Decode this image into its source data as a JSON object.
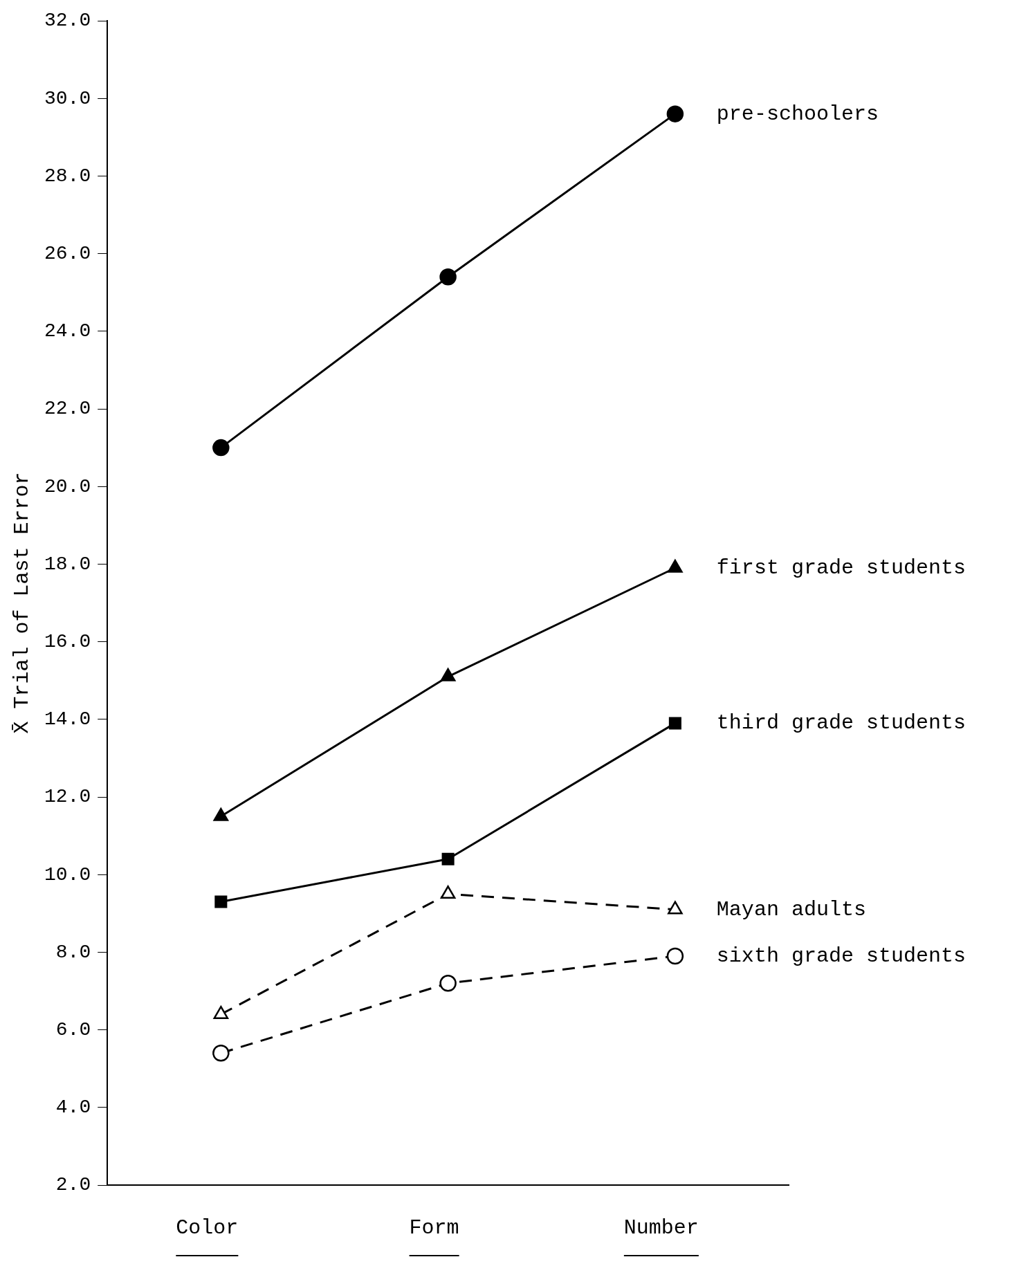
{
  "chart_data": {
    "type": "line",
    "ylabel": "X̄ Trial of Last Error",
    "categories": [
      "Color",
      "Form",
      "Number"
    ],
    "ylim": [
      2,
      32
    ],
    "yticks": [
      {
        "value": 2,
        "label": "2.0"
      },
      {
        "value": 4,
        "label": "4.0"
      },
      {
        "value": 6,
        "label": "6.0"
      },
      {
        "value": 8,
        "label": "8.0"
      },
      {
        "value": 10,
        "label": "10.0"
      },
      {
        "value": 12,
        "label": "12.0"
      },
      {
        "value": 14,
        "label": "14.0"
      },
      {
        "value": 16,
        "label": "16.0"
      },
      {
        "value": 18,
        "label": "18.0"
      },
      {
        "value": 20,
        "label": "20.0"
      },
      {
        "value": 22,
        "label": "22.0"
      },
      {
        "value": 24,
        "label": "24.0"
      },
      {
        "value": 26,
        "label": "26.0"
      },
      {
        "value": 28,
        "label": "28.0"
      },
      {
        "value": 30,
        "label": "30.0"
      },
      {
        "value": 32,
        "label": "32.0"
      }
    ],
    "grid": false,
    "legend": false,
    "series": [
      {
        "name": "pre-schoolers",
        "color": "#000000",
        "values": [
          21.0,
          25.4,
          29.6
        ],
        "marker": "circle",
        "line_style": "solid"
      },
      {
        "name": "first grade students",
        "color": "#000000",
        "values": [
          11.5,
          15.1,
          17.9
        ],
        "marker": "triangle",
        "line_style": "solid"
      },
      {
        "name": "third grade students",
        "color": "#000000",
        "values": [
          9.3,
          10.4,
          13.9
        ],
        "marker": "square",
        "line_style": "solid"
      },
      {
        "name": "Mayan adults",
        "color": "#000000",
        "values": [
          6.4,
          9.5,
          9.1
        ],
        "marker": "triangle",
        "line_style": "dashed"
      },
      {
        "name": "sixth grade students",
        "color": "#000000",
        "values": [
          5.4,
          7.2,
          7.9
        ],
        "marker": "circle",
        "line_style": "dashed"
      }
    ]
  }
}
